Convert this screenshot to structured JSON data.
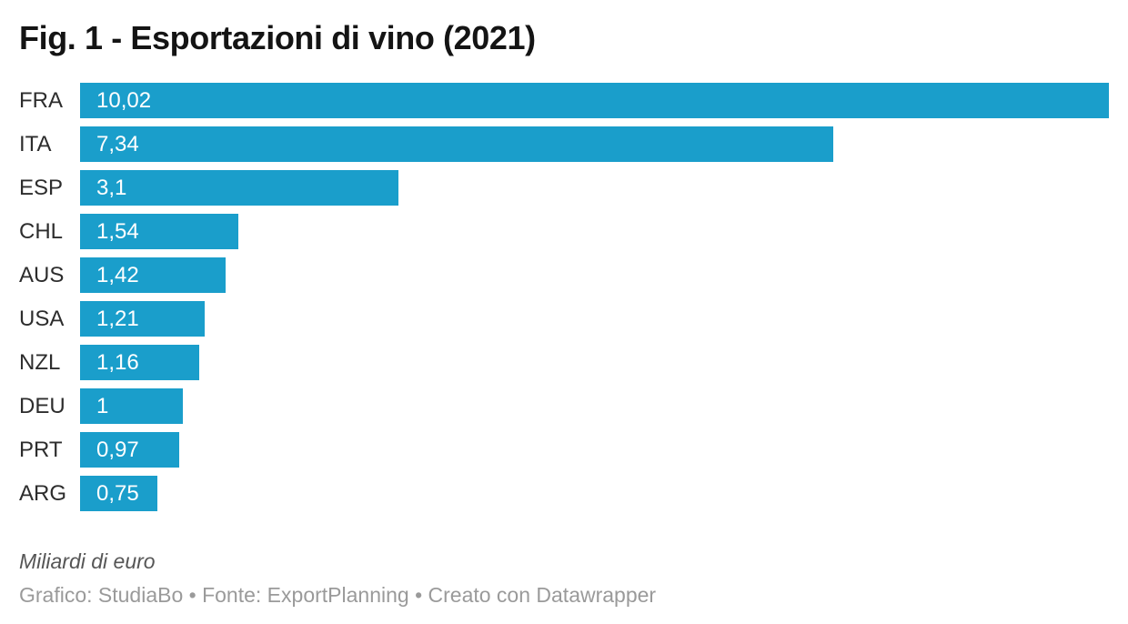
{
  "title": "Fig. 1 - Esportazioni di vino (2021)",
  "colors": {
    "bar": "#1A9ECB",
    "title": "#141414",
    "category_label": "#2d2d2d",
    "value_text": "#ffffff",
    "note": "#565656",
    "credit": "#9a9a9a",
    "background": "#ffffff"
  },
  "footer": {
    "note": "Miliardi di euro",
    "credit": "Grafico: StudiaBo • Fonte: ExportPlanning • Creato con Datawrapper"
  },
  "chart_data": {
    "type": "bar",
    "orientation": "horizontal",
    "title": "Fig. 1 - Esportazioni di vino (2021)",
    "categories": [
      "FRA",
      "ITA",
      "ESP",
      "CHL",
      "AUS",
      "USA",
      "NZL",
      "DEU",
      "PRT",
      "ARG"
    ],
    "values": [
      10.02,
      7.34,
      3.1,
      1.54,
      1.42,
      1.21,
      1.16,
      1,
      0.97,
      0.75
    ],
    "value_labels": [
      "10,02",
      "7,34",
      "3,1",
      "1,54",
      "1,42",
      "1,21",
      "1,16",
      "1",
      "0,97",
      "0,75"
    ],
    "unit": "Miliardi di euro",
    "xlabel": "",
    "ylabel": "",
    "xlim": [
      0,
      10.02
    ],
    "grid": false,
    "legend": false,
    "value_labels_position": "inside-start",
    "bar_color": "#1A9ECB"
  }
}
